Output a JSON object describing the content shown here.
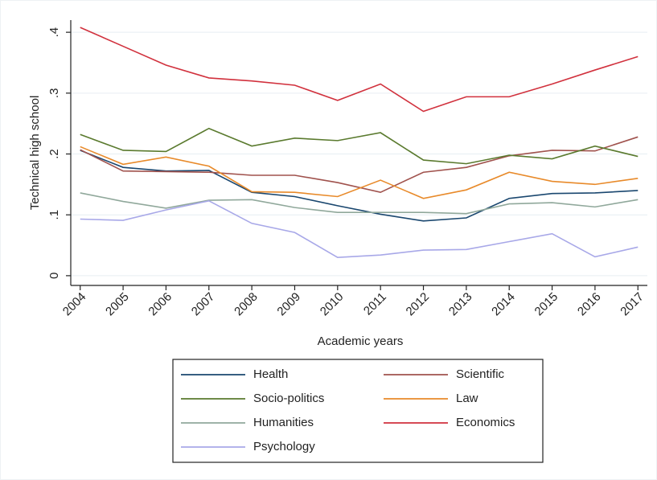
{
  "chart_data": {
    "type": "line",
    "x_label": "Academic years",
    "y_label": "Technical high school",
    "x": [
      2004,
      2005,
      2006,
      2007,
      2008,
      2009,
      2010,
      2011,
      2012,
      2013,
      2014,
      2015,
      2016,
      2017
    ],
    "xlim": [
      2003.78,
      2017.22
    ],
    "xticks": [
      2004,
      2005,
      2006,
      2007,
      2008,
      2009,
      2010,
      2011,
      2012,
      2013,
      2014,
      2015,
      2016,
      2017
    ],
    "ylim": [
      -0.016,
      0.42
    ],
    "yticks": [
      0,
      {
        "value": 0.1,
        "label": ".1"
      },
      {
        "value": 0.2,
        "label": ".2"
      },
      {
        "value": 0.3,
        "label": ".3"
      },
      {
        "value": 0.4,
        "label": ".4"
      }
    ],
    "grid": true,
    "series": [
      {
        "name": "Health",
        "color": "#1a476f",
        "values": [
          0.206,
          0.178,
          0.172,
          0.173,
          0.137,
          0.13,
          0.115,
          0.101,
          0.09,
          0.095,
          0.127,
          0.135,
          0.136,
          0.14
        ]
      },
      {
        "name": "Scientific",
        "color": "#a0524d",
        "values": [
          0.207,
          0.172,
          0.171,
          0.17,
          0.165,
          0.165,
          0.153,
          0.137,
          0.17,
          0.178,
          0.197,
          0.206,
          0.205,
          0.228
        ]
      },
      {
        "name": "Socio-politics",
        "color": "#5a7a2e",
        "values": [
          0.232,
          0.206,
          0.204,
          0.242,
          0.213,
          0.226,
          0.222,
          0.235,
          0.19,
          0.184,
          0.198,
          0.192,
          0.213,
          0.196
        ]
      },
      {
        "name": "Law",
        "color": "#e88a2a",
        "values": [
          0.212,
          0.183,
          0.195,
          0.18,
          0.138,
          0.137,
          0.13,
          0.157,
          0.127,
          0.141,
          0.17,
          0.155,
          0.15,
          0.16
        ]
      },
      {
        "name": "Humanities",
        "color": "#90a89b",
        "values": [
          0.136,
          0.122,
          0.111,
          0.124,
          0.125,
          0.112,
          0.104,
          0.104,
          0.104,
          0.102,
          0.118,
          0.12,
          0.113,
          0.125
        ]
      },
      {
        "name": "Economics",
        "color": "#d1313d",
        "values": [
          0.408,
          0.377,
          0.346,
          0.325,
          0.32,
          0.313,
          0.288,
          0.315,
          0.27,
          0.294,
          0.294,
          0.315,
          0.338,
          0.36
        ]
      },
      {
        "name": "Psychology",
        "color": "#a8a8e8",
        "values": [
          0.093,
          0.091,
          0.108,
          0.123,
          0.086,
          0.071,
          0.03,
          0.034,
          0.042,
          0.043,
          0.056,
          0.069,
          0.031,
          0.047
        ]
      }
    ]
  }
}
